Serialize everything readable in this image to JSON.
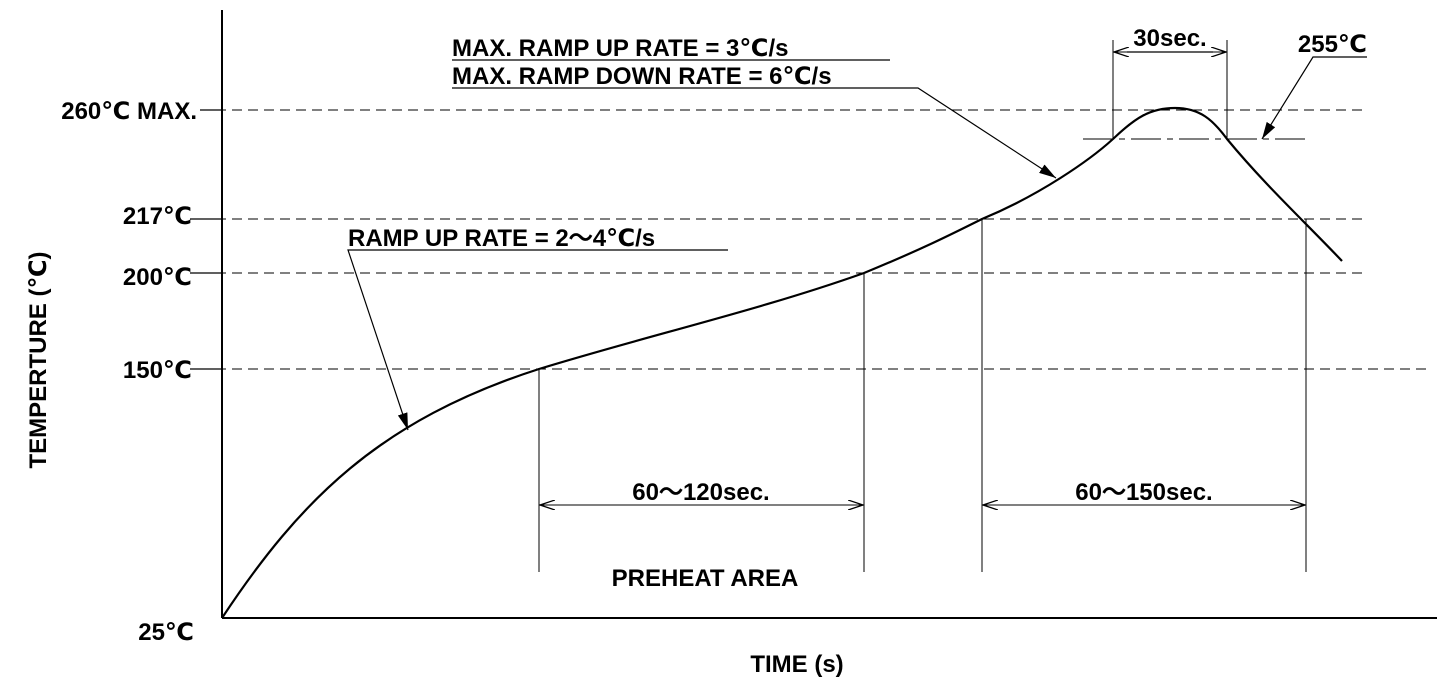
{
  "diagram": {
    "y_axis_label": "TEMPERTURE (℃)",
    "x_axis_label": "TIME (s)",
    "temperature_levels": [
      {
        "key": "t260",
        "label": "260℃ MAX."
      },
      {
        "key": "t217",
        "label": "217℃"
      },
      {
        "key": "t200",
        "label": "200℃"
      },
      {
        "key": "t150",
        "label": "150℃"
      },
      {
        "key": "t25",
        "label": "25℃"
      }
    ],
    "annotations": {
      "max_ramp_up": "MAX. RAMP UP RATE = 3℃/s",
      "max_ramp_down": "MAX. RAMP DOWN RATE = 6℃/s",
      "ramp_up": "RAMP UP RATE = 2〜4℃/s",
      "peak_window": "30sec.",
      "peak_temp": "255℃",
      "preheat_time": "60〜120sec.",
      "reflow_time": "60〜150sec.",
      "preheat_area": "PREHEAT AREA"
    },
    "colors": {
      "line": "#000000",
      "background": "#ffffff"
    }
  }
}
